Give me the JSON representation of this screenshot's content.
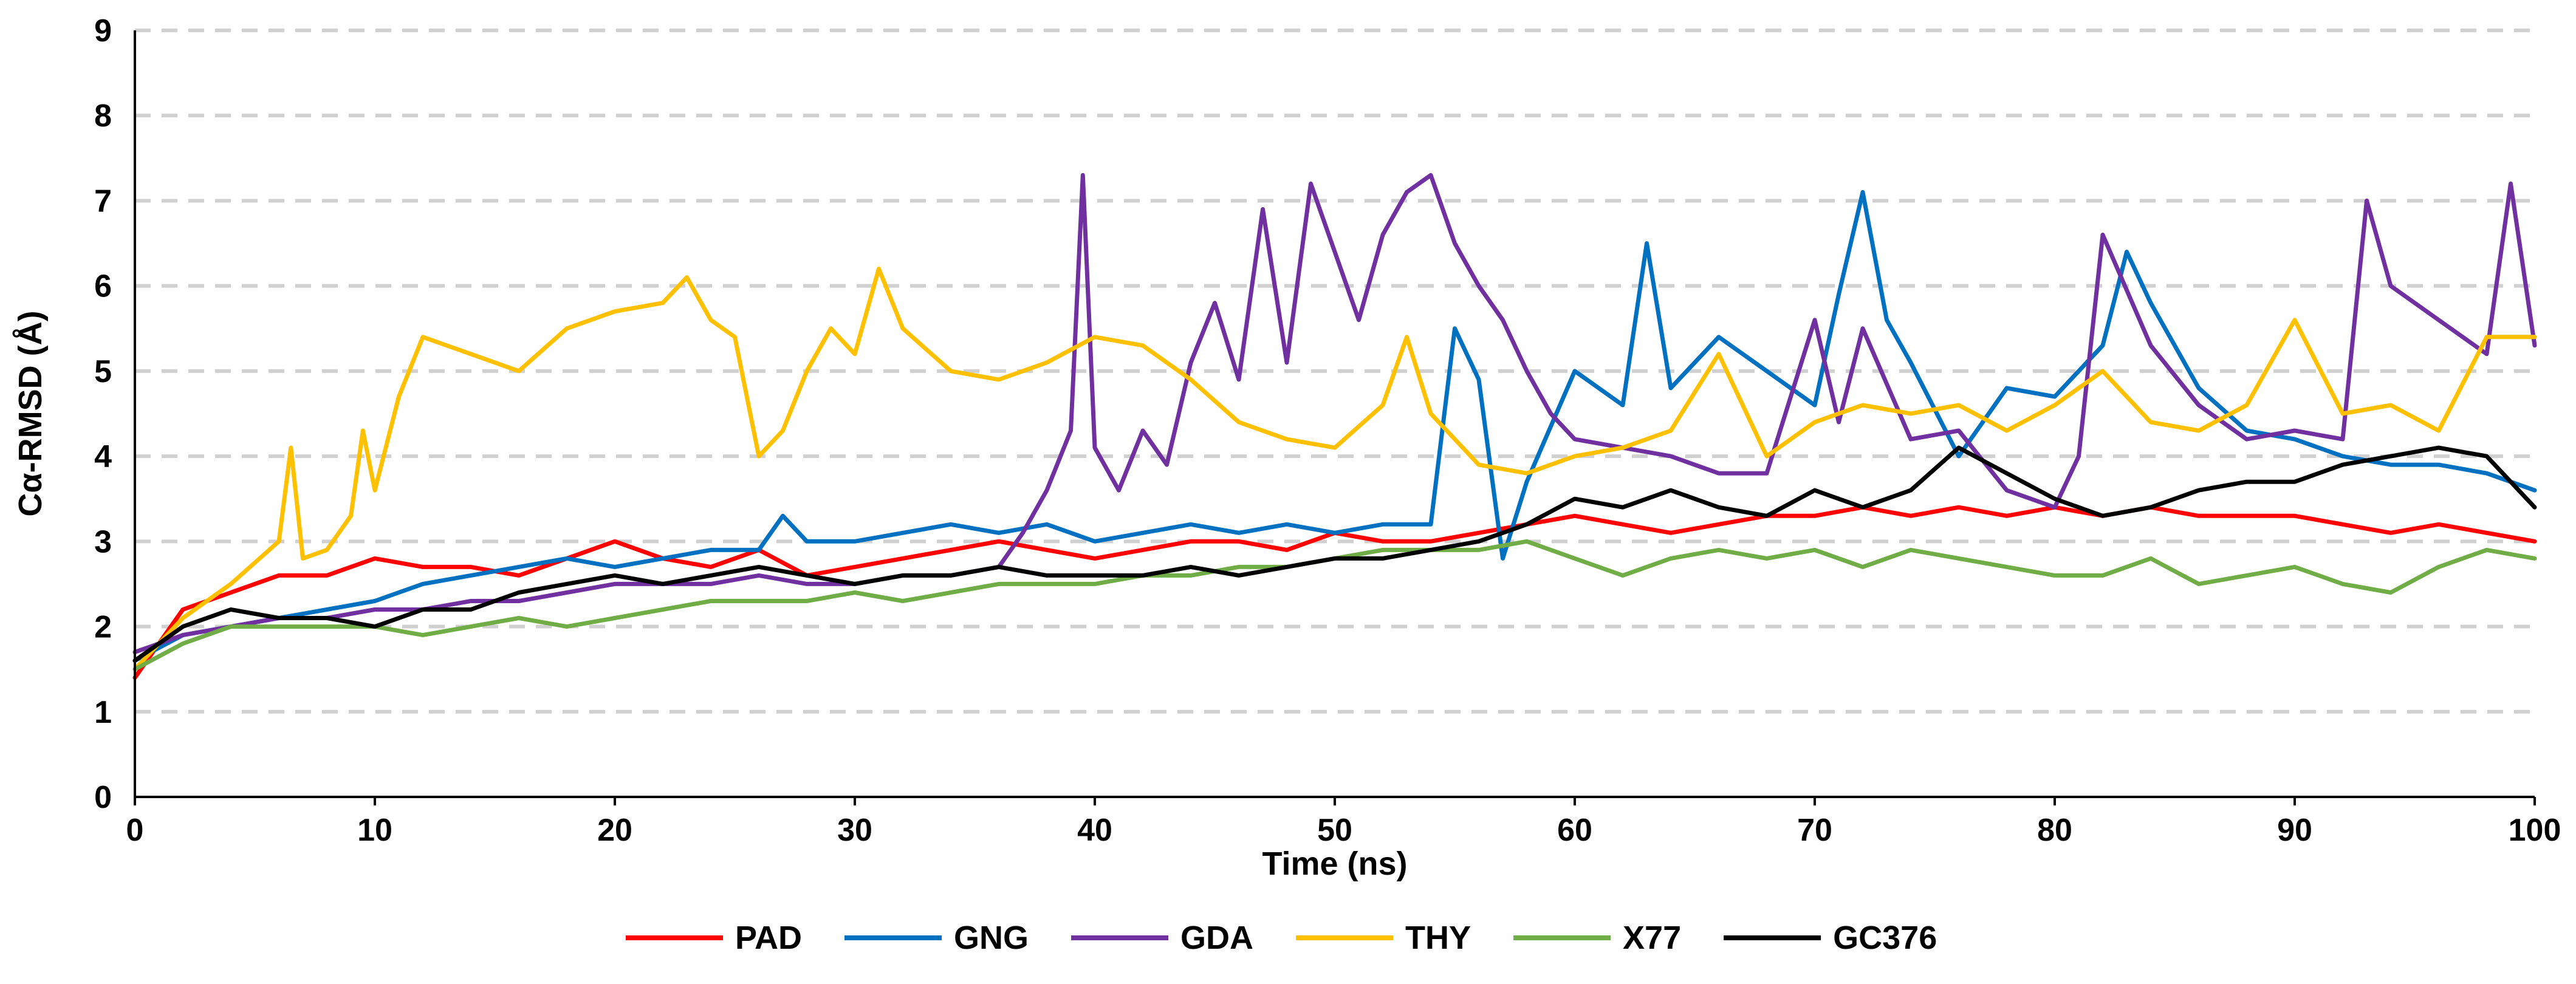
{
  "chart_data": {
    "type": "line",
    "title": "",
    "xlabel": "Time (ns)",
    "ylabel": "Cα-RMSD (Å)",
    "xlim": [
      0,
      100
    ],
    "ylim": [
      0,
      9
    ],
    "xticks": [
      "0",
      "10",
      "20",
      "30",
      "40",
      "50",
      "60",
      "70",
      "80",
      "90",
      "100"
    ],
    "yticks": [
      "0",
      "1",
      "2",
      "3",
      "4",
      "5",
      "6",
      "7",
      "8",
      "9"
    ],
    "grid": true,
    "legend_position": "bottom",
    "series": [
      {
        "name": "PAD",
        "color": "#ff0000",
        "x": [
          0,
          2,
          4,
          6,
          8,
          10,
          12,
          14,
          16,
          18,
          20,
          22,
          24,
          26,
          28,
          30,
          32,
          34,
          36,
          38,
          40,
          42,
          44,
          46,
          48,
          50,
          52,
          54,
          56,
          58,
          60,
          62,
          64,
          66,
          68,
          70,
          72,
          74,
          76,
          78,
          80,
          82,
          84,
          86,
          88,
          90,
          92,
          94,
          96,
          98,
          100
        ],
        "y": [
          1.4,
          2.2,
          2.4,
          2.6,
          2.6,
          2.8,
          2.7,
          2.7,
          2.6,
          2.8,
          3.0,
          2.8,
          2.7,
          2.9,
          2.6,
          2.7,
          2.8,
          2.9,
          3.0,
          2.9,
          2.8,
          2.9,
          3.0,
          3.0,
          2.9,
          3.1,
          3.0,
          3.0,
          3.1,
          3.2,
          3.3,
          3.2,
          3.1,
          3.2,
          3.3,
          3.3,
          3.4,
          3.3,
          3.4,
          3.3,
          3.4,
          3.3,
          3.4,
          3.3,
          3.3,
          3.3,
          3.2,
          3.1,
          3.2,
          3.1,
          3.0
        ]
      },
      {
        "name": "GNG",
        "color": "#0070c0",
        "x": [
          0,
          2,
          4,
          6,
          8,
          10,
          12,
          14,
          16,
          18,
          20,
          22,
          24,
          26,
          27,
          28,
          30,
          32,
          34,
          36,
          38,
          40,
          42,
          44,
          46,
          48,
          50,
          52,
          54,
          55,
          56,
          57,
          58,
          60,
          62,
          63,
          64,
          66,
          68,
          70,
          71,
          72,
          73,
          74,
          76,
          78,
          80,
          82,
          83,
          84,
          86,
          88,
          90,
          92,
          94,
          96,
          98,
          100
        ],
        "y": [
          1.6,
          1.9,
          2.0,
          2.1,
          2.2,
          2.3,
          2.5,
          2.6,
          2.7,
          2.8,
          2.7,
          2.8,
          2.9,
          2.9,
          3.3,
          3.0,
          3.0,
          3.1,
          3.2,
          3.1,
          3.2,
          3.0,
          3.1,
          3.2,
          3.1,
          3.2,
          3.1,
          3.2,
          3.2,
          5.5,
          4.9,
          2.8,
          3.7,
          5.0,
          4.6,
          6.5,
          4.8,
          5.4,
          5.0,
          4.6,
          5.9,
          7.1,
          5.6,
          5.1,
          4.0,
          4.8,
          4.7,
          5.3,
          6.4,
          5.8,
          4.8,
          4.3,
          4.2,
          4.0,
          3.9,
          3.9,
          3.8,
          3.6
        ]
      },
      {
        "name": "GDA",
        "color": "#7030a0",
        "x": [
          0,
          2,
          4,
          6,
          8,
          10,
          12,
          14,
          16,
          18,
          20,
          22,
          24,
          26,
          28,
          30,
          32,
          34,
          36,
          37,
          38,
          39,
          39.5,
          40,
          41,
          42,
          43,
          44,
          45,
          46,
          47,
          48,
          49,
          50,
          51,
          52,
          53,
          54,
          55,
          56,
          57,
          58,
          59,
          60,
          62,
          64,
          66,
          68,
          70,
          71,
          72,
          74,
          76,
          78,
          80,
          81,
          82,
          84,
          86,
          88,
          90,
          92,
          93,
          94,
          96,
          98,
          99,
          100
        ],
        "y": [
          1.7,
          1.9,
          2.0,
          2.1,
          2.1,
          2.2,
          2.2,
          2.3,
          2.3,
          2.4,
          2.5,
          2.5,
          2.5,
          2.6,
          2.5,
          2.5,
          2.6,
          2.6,
          2.7,
          3.1,
          3.6,
          4.3,
          7.3,
          4.1,
          3.6,
          4.3,
          3.9,
          5.1,
          5.8,
          4.9,
          6.9,
          5.1,
          7.2,
          6.4,
          5.6,
          6.6,
          7.1,
          7.3,
          6.5,
          6.0,
          5.6,
          5.0,
          4.5,
          4.2,
          4.1,
          4.0,
          3.8,
          3.8,
          5.6,
          4.4,
          5.5,
          4.2,
          4.3,
          3.6,
          3.4,
          4.0,
          6.6,
          5.3,
          4.6,
          4.2,
          4.3,
          4.2,
          7.0,
          6.0,
          5.6,
          5.2,
          7.2,
          5.3
        ]
      },
      {
        "name": "THY",
        "color": "#ffc000",
        "x": [
          0,
          2,
          4,
          6,
          6.5,
          7,
          8,
          9,
          9.5,
          10,
          11,
          12,
          14,
          16,
          18,
          20,
          22,
          23,
          24,
          25,
          26,
          27,
          28,
          29,
          30,
          31,
          32,
          34,
          36,
          38,
          40,
          42,
          44,
          46,
          48,
          50,
          52,
          53,
          54,
          56,
          58,
          60,
          62,
          64,
          66,
          68,
          70,
          72,
          74,
          76,
          78,
          80,
          82,
          84,
          86,
          88,
          90,
          92,
          94,
          96,
          98,
          100
        ],
        "y": [
          1.5,
          2.1,
          2.5,
          3.0,
          4.1,
          2.8,
          2.9,
          3.3,
          4.3,
          3.6,
          4.7,
          5.4,
          5.2,
          5.0,
          5.5,
          5.7,
          5.8,
          6.1,
          5.6,
          5.4,
          4.0,
          4.3,
          5.0,
          5.5,
          5.2,
          6.2,
          5.5,
          5.0,
          4.9,
          5.1,
          5.4,
          5.3,
          4.9,
          4.4,
          4.2,
          4.1,
          4.6,
          5.4,
          4.5,
          3.9,
          3.8,
          4.0,
          4.1,
          4.3,
          5.2,
          4.0,
          4.4,
          4.6,
          4.5,
          4.6,
          4.3,
          4.6,
          5.0,
          4.4,
          4.3,
          4.6,
          5.6,
          4.5,
          4.6,
          4.3,
          5.4,
          5.4
        ]
      },
      {
        "name": "X77",
        "color": "#70ad47",
        "x": [
          0,
          2,
          4,
          6,
          8,
          10,
          12,
          14,
          16,
          18,
          20,
          22,
          24,
          26,
          28,
          30,
          32,
          34,
          36,
          38,
          40,
          42,
          44,
          46,
          48,
          50,
          52,
          54,
          56,
          58,
          60,
          62,
          64,
          66,
          68,
          70,
          72,
          74,
          76,
          78,
          80,
          82,
          84,
          86,
          88,
          90,
          92,
          94,
          96,
          98,
          100
        ],
        "y": [
          1.5,
          1.8,
          2.0,
          2.0,
          2.0,
          2.0,
          1.9,
          2.0,
          2.1,
          2.0,
          2.1,
          2.2,
          2.3,
          2.3,
          2.3,
          2.4,
          2.3,
          2.4,
          2.5,
          2.5,
          2.5,
          2.6,
          2.6,
          2.7,
          2.7,
          2.8,
          2.9,
          2.9,
          2.9,
          3.0,
          2.8,
          2.6,
          2.8,
          2.9,
          2.8,
          2.9,
          2.7,
          2.9,
          2.8,
          2.7,
          2.6,
          2.6,
          2.8,
          2.5,
          2.6,
          2.7,
          2.5,
          2.4,
          2.7,
          2.9,
          2.8
        ]
      },
      {
        "name": "GC376",
        "color": "#000000",
        "x": [
          0,
          2,
          4,
          6,
          8,
          10,
          12,
          14,
          16,
          18,
          20,
          22,
          24,
          26,
          28,
          30,
          32,
          34,
          36,
          38,
          40,
          42,
          44,
          46,
          48,
          50,
          52,
          54,
          56,
          58,
          60,
          62,
          64,
          66,
          68,
          70,
          72,
          74,
          76,
          78,
          80,
          82,
          84,
          86,
          88,
          90,
          92,
          94,
          96,
          98,
          100
        ],
        "y": [
          1.6,
          2.0,
          2.2,
          2.1,
          2.1,
          2.0,
          2.2,
          2.2,
          2.4,
          2.5,
          2.6,
          2.5,
          2.6,
          2.7,
          2.6,
          2.5,
          2.6,
          2.6,
          2.7,
          2.6,
          2.6,
          2.6,
          2.7,
          2.6,
          2.7,
          2.8,
          2.8,
          2.9,
          3.0,
          3.2,
          3.5,
          3.4,
          3.6,
          3.4,
          3.3,
          3.6,
          3.4,
          3.6,
          4.1,
          3.8,
          3.5,
          3.3,
          3.4,
          3.6,
          3.7,
          3.7,
          3.9,
          4.0,
          4.1,
          4.0,
          3.4
        ]
      }
    ]
  }
}
